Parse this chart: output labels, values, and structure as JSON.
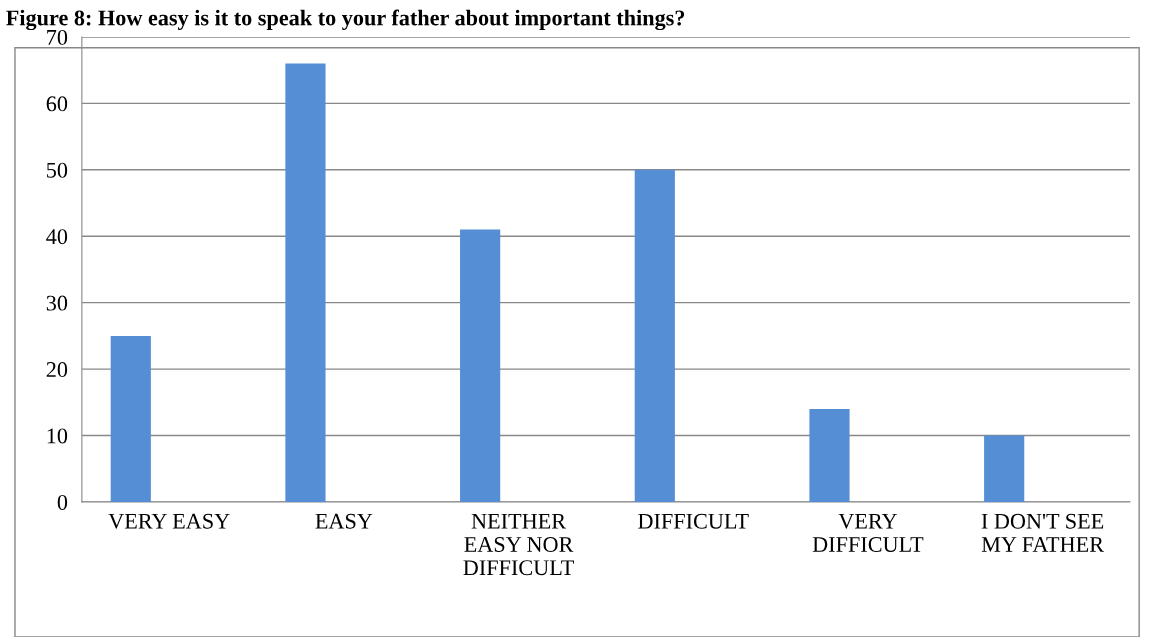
{
  "chart_data": {
    "type": "bar",
    "title": "Figure 8: How easy is it to speak to your father about important things?",
    "categories": [
      "VERY EASY",
      "EASY",
      "NEITHER EASY NOR DIFFICULT",
      "DIFFICULT",
      "VERY DIFFICULT",
      "I DON'T SEE MY FATHER"
    ],
    "values": [
      25,
      66,
      41,
      50,
      14,
      10
    ],
    "color": "#558ed5",
    "ylim": [
      0,
      70
    ],
    "yticks": [
      0,
      10,
      20,
      30,
      40,
      50,
      60,
      70
    ],
    "grid": "y"
  }
}
